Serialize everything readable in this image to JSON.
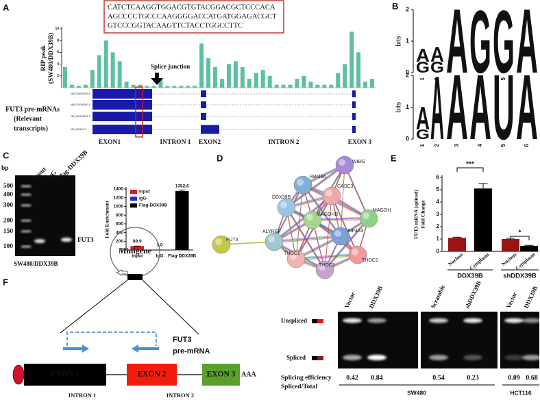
{
  "panel_a": {
    "label": "A",
    "sequence": [
      "CATCTCAAGGTGGACGTGTACGGACGCTCCCACA",
      "AGCCCCTGCCCAAGGGGACCATGATGGAGACGCT",
      "GTCCCGGTACAAGTTCTACCTGGCCTTC"
    ],
    "y_label": [
      "RIP peak",
      "(SW480/DDX39B)"
    ],
    "annotation": "Splice junction",
    "track_label": [
      "FUT3  pre-mRNAs",
      "(Relevant",
      "transcripts)"
    ],
    "transcripts": [
      "NM_001097639.1",
      "NM_001097640.1",
      "NM_001097641.1",
      "NM_000149.3"
    ],
    "regions": [
      "EXON1",
      "INTRON 1",
      "EXON2",
      "INTRON 2",
      "EXON 3"
    ]
  },
  "panel_b": {
    "label": "B",
    "colors": {
      "A": "#d8261c",
      "G": "#f4a21c",
      "U": "#0c8c3a"
    },
    "logos": [
      {
        "y_label": "bits",
        "ylim": [
          0,
          2
        ],
        "yticks": [
          0,
          1,
          2
        ],
        "positions": [
          1,
          2,
          3,
          4,
          5,
          6
        ],
        "columns": [
          [
            {
              "letter": "G",
              "bits": 0.35
            },
            {
              "letter": "A",
              "bits": 0.4
            }
          ],
          [
            {
              "letter": "G",
              "bits": 0.35
            },
            {
              "letter": "A",
              "bits": 0.45
            }
          ],
          [
            {
              "letter": "A",
              "bits": 2.0
            }
          ],
          [
            {
              "letter": "G",
              "bits": 1.95
            }
          ],
          [
            {
              "letter": "G",
              "bits": 1.95
            }
          ],
          [
            {
              "letter": "A",
              "bits": 2.0
            }
          ]
        ]
      },
      {
        "y_label": "bits",
        "ylim": [
          0,
          2
        ],
        "yticks": [
          0,
          1,
          2
        ],
        "positions": [
          1,
          2,
          3,
          4,
          5,
          6
        ],
        "columns": [
          [
            {
              "letter": "G",
              "bits": 0.3
            },
            {
              "letter": "A",
              "bits": 0.7
            }
          ],
          [
            {
              "letter": "A",
              "bits": 1.95
            }
          ],
          [
            {
              "letter": "A",
              "bits": 2.0
            }
          ],
          [
            {
              "letter": "A",
              "bits": 2.0
            }
          ],
          [
            {
              "letter": "U",
              "bits": 2.0
            }
          ],
          [
            {
              "letter": "A",
              "bits": 2.0
            }
          ]
        ]
      }
    ]
  },
  "panel_c": {
    "label": "C",
    "unit": "bp",
    "ladder": [
      500,
      400,
      300,
      200,
      150,
      100
    ],
    "lanes": [
      "Input",
      "IgG",
      "Flag-DDX39B"
    ],
    "band_label": "FUT3",
    "caption": "SW480/DDX39B"
  },
  "panel_d": {
    "label": "D",
    "nodes": [
      "WIBG",
      "RBM8A",
      "CASC3",
      "DDX39B",
      "MAGOHB",
      "MAGOH",
      "EIF4A3",
      "FUT3",
      "ALYREF",
      "THOC1",
      "THOC3",
      "THOC2"
    ]
  },
  "panel_e": {
    "label": "E"
  },
  "panel_f": {
    "label": "F",
    "plasmid": "Minigene",
    "gene": [
      "FUT3",
      "pre-mRNA"
    ],
    "exons": [
      "EXON 1",
      "EXON 2",
      "EXON 3"
    ],
    "tail": "AAA",
    "introns": [
      "INTRON 1",
      "INTRON 2"
    ],
    "lanes": [
      "Vector",
      "DDX39B",
      "Scramble",
      "shDDX39B",
      "Vector",
      "DDX39B"
    ],
    "bands": [
      "Unspliced",
      "Spliced"
    ],
    "efficiency_label": [
      "Splicing efficiency",
      "Spliced/Total"
    ],
    "efficiency": [
      0.42,
      0.84,
      0.54,
      0.23,
      0.09,
      0.68
    ],
    "cell_lines": [
      "SW480",
      "HCT116"
    ]
  },
  "chart_data": [
    {
      "type": "bar",
      "color": "#5dbfa3",
      "ylim": [
        0,
        10
      ],
      "yticks": [
        2,
        4,
        6,
        8,
        10
      ],
      "categories": [
        null,
        null,
        null,
        null,
        null,
        null,
        null,
        null,
        null,
        null,
        null,
        null,
        null,
        null,
        null,
        null,
        null,
        null,
        null,
        null,
        null,
        null,
        null,
        null,
        null,
        null,
        null,
        null,
        null,
        null,
        null,
        null,
        null,
        null,
        null,
        null,
        null,
        null,
        null,
        null,
        null,
        null,
        null,
        null,
        null,
        null
      ],
      "values": [
        3.5,
        0.5,
        0.3,
        0.5,
        3,
        5.5,
        8,
        6,
        4.5,
        1,
        0.5,
        0.5,
        0.3,
        0.3,
        1.5,
        0.3,
        0.3,
        0.3,
        0.3,
        0.3,
        7.5,
        5,
        3.5,
        1.5,
        4,
        4.5,
        3.5,
        1.5,
        2.5,
        3,
        2,
        0.5,
        0.5,
        0.5,
        1.5,
        2,
        1,
        0.5,
        0.5,
        0.5,
        2.5,
        4,
        9.5,
        6,
        1,
        1.5
      ]
    },
    {
      "type": "bar",
      "y_label": "Fold Enrichment",
      "ylim": [
        0,
        1400
      ],
      "yticks": [
        0,
        200,
        400,
        600,
        800,
        1000,
        1200,
        1400
      ],
      "categories": [
        "Input",
        "IgG",
        "Flag-DDX39B"
      ],
      "values": [
        89.9,
        1.0,
        1352.6
      ],
      "value_labels": [
        "89.9",
        "1.0",
        "1352.6"
      ],
      "errors": [
        0,
        0,
        25
      ],
      "colors": [
        "#e8141c",
        "#2b2bd6",
        "#000000"
      ],
      "legend": "upper-left"
    },
    {
      "type": "bar",
      "y_label": [
        "FUT3 mRNA (spliced)",
        "Fold Change"
      ],
      "ylim": [
        0,
        6
      ],
      "yticks": [
        0,
        1,
        2,
        3,
        4,
        5,
        6
      ],
      "categories": [
        "Nucleus",
        "Cytoplasm",
        "Nucleus",
        "Cytoplasm"
      ],
      "values": [
        1.1,
        5.1,
        1.0,
        0.45
      ],
      "errors": [
        0.05,
        0.4,
        0.06,
        0.04
      ],
      "colors": [
        "#9b1414",
        "#000000",
        "#9b1414",
        "#000000"
      ],
      "groups": [
        "DDX39B",
        "shDDX39B"
      ],
      "significance": [
        "***",
        "*"
      ]
    }
  ]
}
